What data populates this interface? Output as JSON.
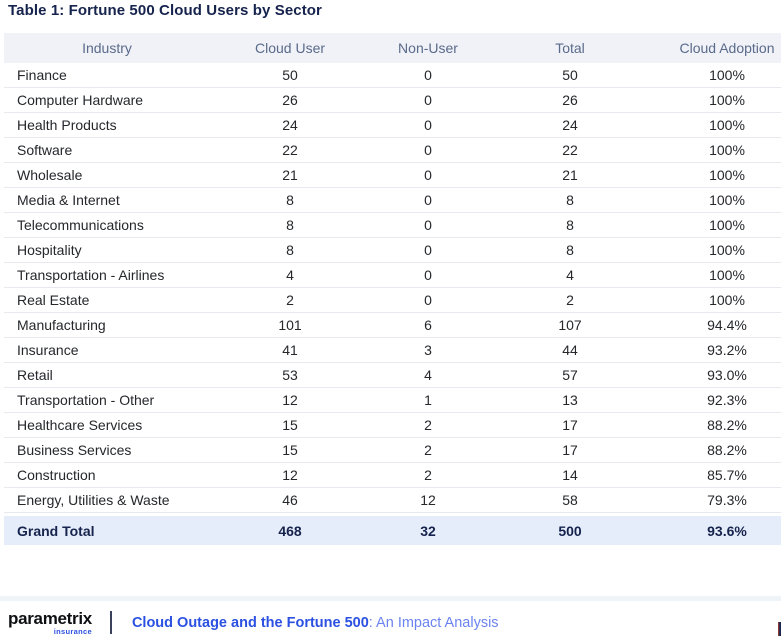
{
  "page_title": "Table 1: Fortune 500 Cloud Users by Sector",
  "table": {
    "headers": [
      "Industry",
      "Cloud User",
      "Non-User",
      "Total",
      "Cloud Adoption"
    ],
    "rows": [
      [
        "Finance",
        "50",
        "0",
        "50",
        "100%"
      ],
      [
        "Computer Hardware",
        "26",
        "0",
        "26",
        "100%"
      ],
      [
        "Health Products",
        "24",
        "0",
        "24",
        "100%"
      ],
      [
        "Software",
        "22",
        "0",
        "22",
        "100%"
      ],
      [
        "Wholesale",
        "21",
        "0",
        "21",
        "100%"
      ],
      [
        "Media & Internet",
        "8",
        "0",
        "8",
        "100%"
      ],
      [
        "Telecommunications",
        "8",
        "0",
        "8",
        "100%"
      ],
      [
        "Hospitality",
        "8",
        "0",
        "8",
        "100%"
      ],
      [
        "Transportation - Airlines",
        "4",
        "0",
        "4",
        "100%"
      ],
      [
        "Real Estate",
        "2",
        "0",
        "2",
        "100%"
      ],
      [
        "Manufacturing",
        "101",
        "6",
        "107",
        "94.4%"
      ],
      [
        "Insurance",
        "41",
        "3",
        "44",
        "93.2%"
      ],
      [
        "Retail",
        "53",
        "4",
        "57",
        "93.0%"
      ],
      [
        "Transportation - Other",
        "12",
        "1",
        "13",
        "92.3%"
      ],
      [
        "Healthcare Services",
        "15",
        "2",
        "17",
        "88.2%"
      ],
      [
        "Business Services",
        "15",
        "2",
        "17",
        "88.2%"
      ],
      [
        "Construction",
        "12",
        "2",
        "14",
        "85.7%"
      ],
      [
        "Energy, Utilities & Waste",
        "46",
        "12",
        "58",
        "79.3%"
      ]
    ],
    "grand_total": [
      "Grand Total",
      "468",
      "32",
      "500",
      "93.6%"
    ]
  },
  "footer": {
    "logo_text": "parametrix",
    "logo_subtitle": "insurance",
    "report_title_bold": "Cloud Outage and the Fortune 500",
    "report_title_rest": ": An Impact Analysis"
  },
  "colors": {
    "heading_navy": "#15234d",
    "accent_blue": "#2b50e2",
    "accent_blue_light": "#6b83f0",
    "header_row_bg": "#f0f2f7",
    "header_row_text": "#5a6a8b",
    "grand_total_bg": "#e6edfa",
    "row_border": "#e7e9ee"
  }
}
